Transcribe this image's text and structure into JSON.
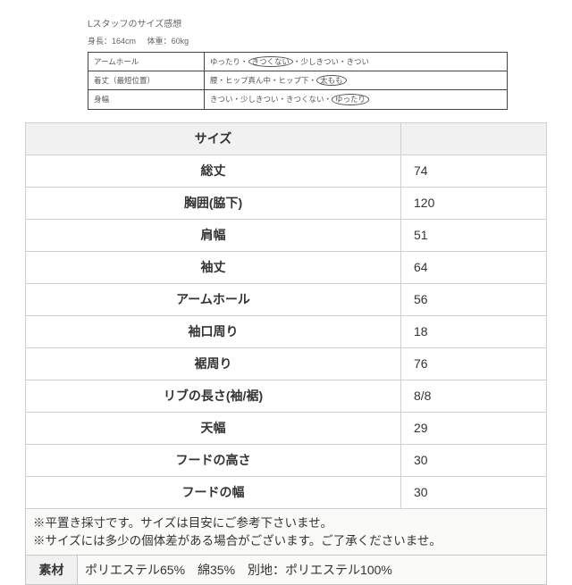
{
  "header": {
    "title": "Lスタッフのサイズ感想",
    "height_label": "身長：",
    "height_value": "164cm",
    "weight_label": "体重：",
    "weight_value": "60kg"
  },
  "fit": {
    "rows": [
      {
        "label": "アームホール",
        "pre": "ゆったり・",
        "circled": "きつくない",
        "post": "・少しきつい・きつい"
      },
      {
        "label": "着丈（最短位置）",
        "pre": "腰・ヒップ真ん中・ヒップ下・",
        "circled": "太もも",
        "post": ""
      },
      {
        "label": "身幅",
        "pre": "きつい・少しきつい・きつくない・",
        "circled": "ゆったり",
        "post": ""
      }
    ]
  },
  "size": {
    "header": "サイズ",
    "rows": [
      {
        "label": "総丈",
        "value": "74"
      },
      {
        "label": "胸囲(脇下)",
        "value": "120"
      },
      {
        "label": "肩幅",
        "value": "51"
      },
      {
        "label": "袖丈",
        "value": "64"
      },
      {
        "label": "アームホール",
        "value": "56"
      },
      {
        "label": "袖口周り",
        "value": "18"
      },
      {
        "label": "裾周り",
        "value": "76"
      },
      {
        "label": "リブの長さ(袖/裾)",
        "value": "8/8"
      },
      {
        "label": "天幅",
        "value": "29"
      },
      {
        "label": "フードの高さ",
        "value": "30"
      },
      {
        "label": "フードの幅",
        "value": "30"
      }
    ]
  },
  "notes": {
    "line1": "※平置き採寸です。サイズは目安にご参考下さいませ。",
    "line2": "※サイズには多少の個体差がある場合がございます。ご了承くださいませ。"
  },
  "material": {
    "label": "素材",
    "value": "ポリエステル65%　綿35%　別地：ポリエステル100%"
  },
  "style": {
    "bg": "#ffffff",
    "border": "#d0d0d0",
    "header_bg": "#f1f1f1",
    "note_bg": "#fafaf8",
    "text": "#333333",
    "fit_border": "#444444",
    "font_header_pt": 10,
    "font_body_pt": 14
  }
}
